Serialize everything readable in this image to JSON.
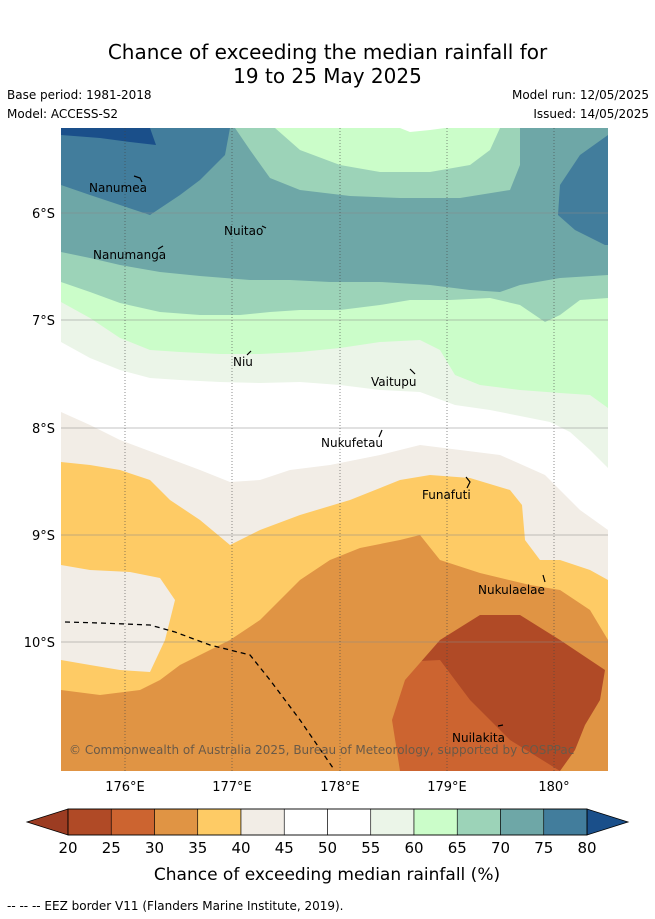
{
  "title_line1": "Chance of exceeding the median rainfall for",
  "title_line2": "19 to 25 May 2025",
  "base_period": "Base period: 1981-2018",
  "model": "Model: ACCESS-S2",
  "model_run": "Model run: 12/05/2025",
  "issued": "Issued: 14/05/2025",
  "lat_labels": [
    "6°S",
    "7°S",
    "8°S",
    "9°S",
    "10°S"
  ],
  "lon_labels": [
    "176°E",
    "177°E",
    "178°E",
    "179°E",
    "180°"
  ],
  "islands": [
    "Nanumea",
    "Nuitao",
    "Nanumanga",
    "Niu",
    "Vaitupu",
    "Nukufetau",
    "Funafuti",
    "Nukulaelae",
    "Nuilakita"
  ],
  "copyright": "© Commonwealth of Australia 2025, Bureau of Meteorology, supported by COSPPac",
  "colorbar": {
    "ticks": [
      "20",
      "25",
      "30",
      "35",
      "40",
      "45",
      "50",
      "55",
      "60",
      "65",
      "70",
      "75",
      "80"
    ],
    "label": "Chance of exceeding median rainfall (%)",
    "colors": [
      "#b04a26",
      "#cc6430",
      "#e09444",
      "#fecb65",
      "#f2ede6",
      "#ffffff",
      "#ffffff",
      "#ebf5e8",
      "#cbfdc9",
      "#9cd3b8",
      "#6ea7a7",
      "#427d9c"
    ],
    "under_color": "#9c3c22",
    "over_color": "#1a4f8a"
  },
  "legend_text": "--  --  -- EEZ border V11 (Flanders Marine Institute, 2019)."
}
